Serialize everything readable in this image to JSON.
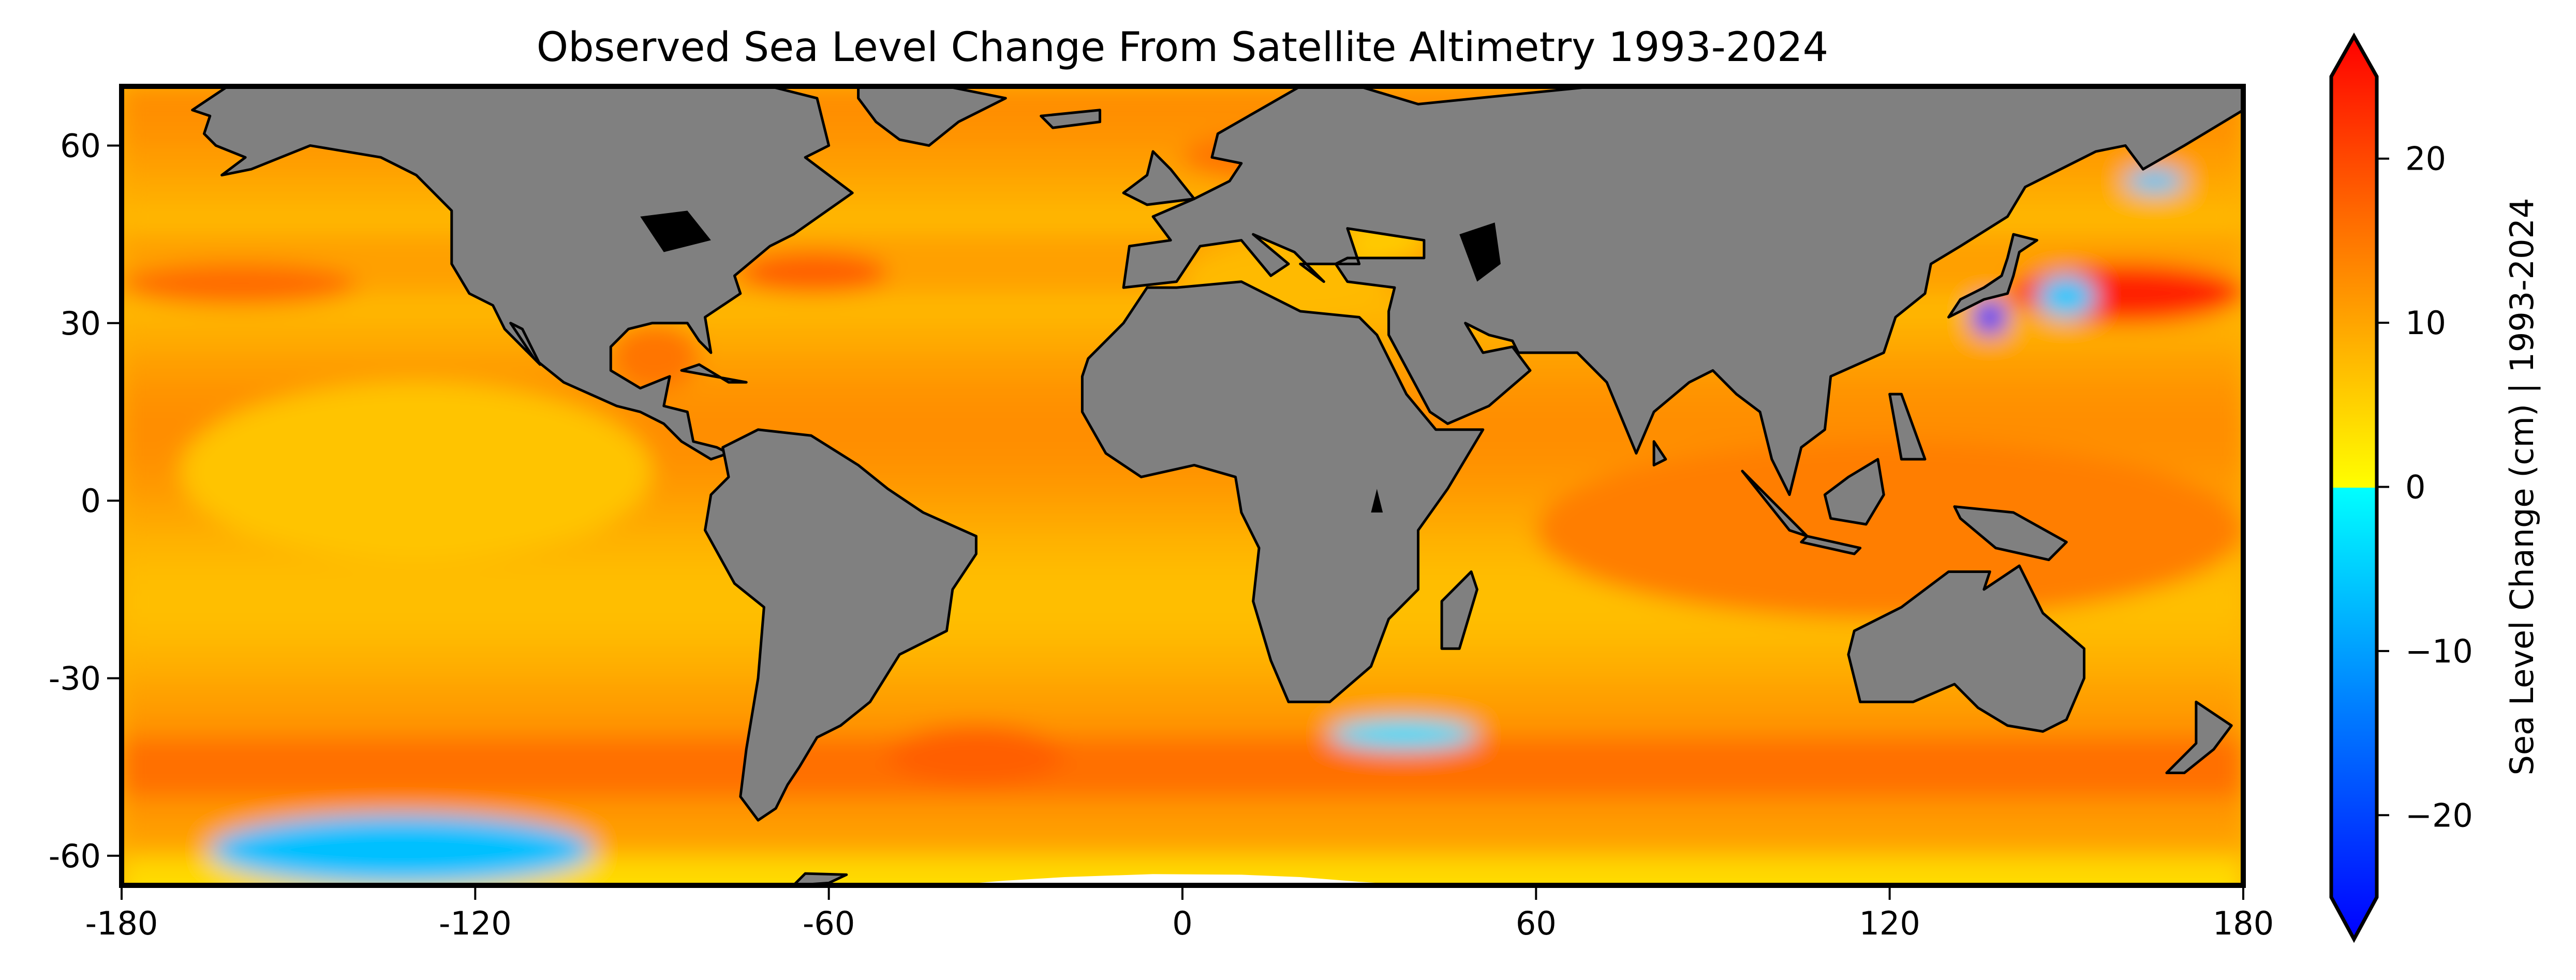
{
  "chart_data": {
    "type": "heatmap",
    "subtype": "global map (PlateCarree) of sea level change",
    "title": "Observed Sea Level Change From Satellite Altimetry 1993-2024",
    "xlabel": "",
    "ylabel": "",
    "x_ticks": [
      -180,
      -120,
      -60,
      0,
      60,
      120,
      180
    ],
    "x_tick_labels": [
      "-180",
      "-120",
      "-60",
      "0",
      "60",
      "120",
      "180"
    ],
    "y_ticks": [
      60,
      30,
      0,
      -30,
      -60
    ],
    "y_tick_labels": [
      "60",
      "30",
      "0",
      "-30",
      "-60"
    ],
    "xlim": [
      -180,
      180
    ],
    "ylim": [
      -65,
      70
    ],
    "grid": false,
    "land_color": "#808080",
    "nodata_color": "#ffffff",
    "coastline_color": "#000000",
    "colorbar": {
      "label": "Sea Level Change (cm) | 1993-2024",
      "range": [
        -25,
        25
      ],
      "extend": "both",
      "ticks": [
        20,
        10,
        0,
        -10,
        -20
      ],
      "tick_labels": [
        "20",
        "10",
        "0",
        "−10",
        "−20"
      ],
      "placement": "right",
      "colormap_stops": [
        {
          "value": -25,
          "color": "#0000ff"
        },
        {
          "value": -12,
          "color": "#0080ff"
        },
        {
          "value": 0,
          "color": "#00ffff"
        },
        {
          "value": 0.01,
          "color": "#ffff00"
        },
        {
          "value": 8,
          "color": "#ffb000"
        },
        {
          "value": 15,
          "color": "#ff6a00"
        },
        {
          "value": 25,
          "color": "#ff0000"
        }
      ]
    },
    "field_summary": {
      "typical_open_ocean_cm": [
        5,
        12
      ],
      "regions": [
        {
          "name": "Kuroshio Extension east of Japan",
          "lon": [
            140,
            180
          ],
          "lat": [
            30,
            40
          ],
          "value_cm": 22
        },
        {
          "name": "Negative eddies south of Japan",
          "lon": [
            134,
            140
          ],
          "lat": [
            28,
            34
          ],
          "value_cm": -22
        },
        {
          "name": "Small negative eddies east of Japan",
          "lon": [
            145,
            155
          ],
          "lat": [
            31,
            38
          ],
          "value_cm": -5
        },
        {
          "name": "Gulf Stream",
          "lon": [
            -75,
            -50
          ],
          "lat": [
            35,
            42
          ],
          "value_cm": 16
        },
        {
          "name": "Gulf of Mexico",
          "lon": [
            -97,
            -82
          ],
          "lat": [
            19,
            30
          ],
          "value_cm": 14
        },
        {
          "name": "Southern Ocean near Amundsen/Ross Sea",
          "lon": [
            -165,
            -100
          ],
          "lat": [
            -65,
            -53
          ],
          "value_cm": -6
        },
        {
          "name": "Agulhas Return Current eddies",
          "lon": [
            25,
            50
          ],
          "lat": [
            -42,
            -37
          ],
          "value_cm": -3
        },
        {
          "name": "South Atlantic / Argentine basin",
          "lon": [
            -50,
            -20
          ],
          "lat": [
            -48,
            -38
          ],
          "value_cm": 16
        },
        {
          "name": "Eastern Pacific equatorial band",
          "lon": [
            -170,
            -90
          ],
          "lat": [
            -10,
            20
          ],
          "value_cm": 6
        },
        {
          "name": "Western tropical Pacific / Indian Ocean",
          "lon": [
            60,
            180
          ],
          "lat": [
            -20,
            10
          ],
          "value_cm": 13
        },
        {
          "name": "North Pacific mid latitudes",
          "lon": [
            -180,
            -140
          ],
          "lat": [
            33,
            40
          ],
          "value_cm": 15
        },
        {
          "name": "Sea of Okhotsk / Kamchatka coast",
          "lon": [
            160,
            170
          ],
          "lat": [
            52,
            56
          ],
          "value_cm": -5
        },
        {
          "name": "Baltic / North Sea",
          "lon": [
            0,
            30
          ],
          "lat": [
            54,
            62
          ],
          "value_cm": 14
        },
        {
          "name": "Mediterranean",
          "lon": [
            0,
            35
          ],
          "lat": [
            31,
            44
          ],
          "value_cm": 7
        },
        {
          "name": "Black Sea",
          "lon": [
            28,
            41
          ],
          "lat": [
            41,
            46
          ],
          "value_cm": 5
        }
      ]
    }
  }
}
